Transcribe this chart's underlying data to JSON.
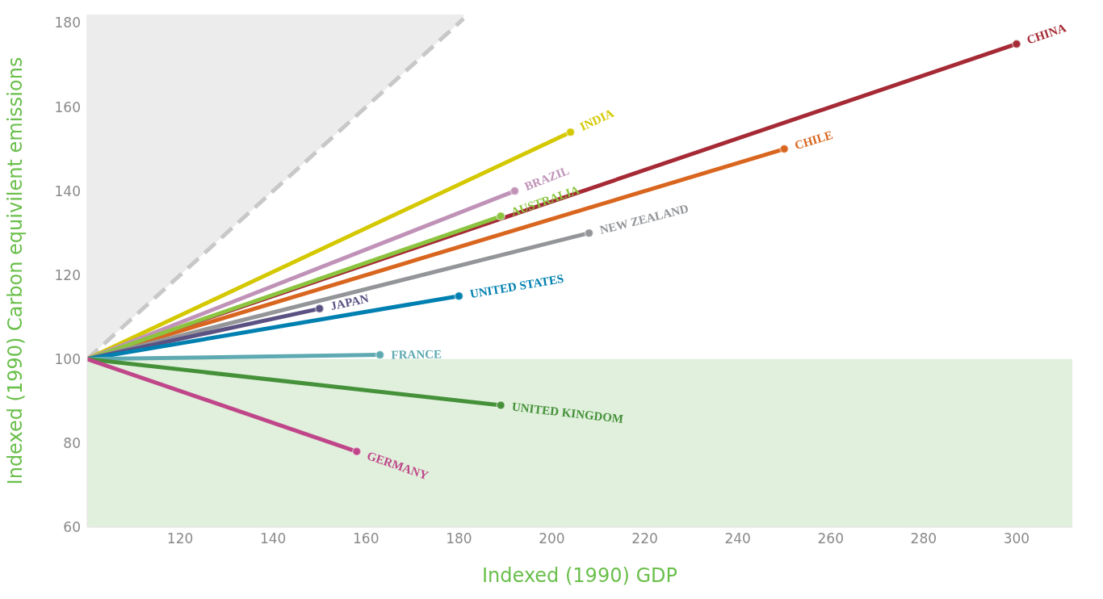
{
  "chart_data": {
    "type": "line",
    "xlabel": "Indexed (1990) GDP",
    "ylabel": "Indexed (1990) Carbon equivilent emissions",
    "xlim": [
      100,
      312
    ],
    "xticks": [
      120,
      140,
      160,
      180,
      200,
      220,
      240,
      260,
      280,
      300
    ],
    "ylim": [
      60,
      182
    ],
    "yticks": [
      60,
      80,
      100,
      120,
      140,
      160,
      180
    ],
    "legend": false,
    "marker": "circle",
    "line_style": "solid",
    "bands": [
      {
        "axis": "y",
        "from": 60,
        "to": 100,
        "color": "#e0f0dc"
      }
    ],
    "series": [
      {
        "type": "area",
        "color": "#c8c8c8",
        "line_style": "dashed",
        "marker": "none",
        "x": [
          100,
          181
        ],
        "values": [
          100,
          181
        ]
      },
      {
        "name": "CHINA",
        "color": "#a52a35",
        "x": [
          100,
          300
        ],
        "values": [
          100,
          175
        ]
      },
      {
        "name": "CHILE",
        "color": "#d9661f",
        "x": [
          100,
          250
        ],
        "values": [
          100,
          150
        ]
      },
      {
        "name": "INDIA",
        "color": "#d4c800",
        "x": [
          100,
          204
        ],
        "values": [
          100,
          154
        ]
      },
      {
        "name": "BRAZIL",
        "color": "#c092b8",
        "x": [
          100,
          192
        ],
        "values": [
          100,
          140
        ]
      },
      {
        "name": "AUSTRALIA",
        "color": "#8cc43f",
        "x": [
          100,
          189
        ],
        "values": [
          100,
          134
        ]
      },
      {
        "name": "NEW ZEALAND",
        "color": "#939598",
        "x": [
          100,
          208
        ],
        "values": [
          100,
          130
        ]
      },
      {
        "name": "JAPAN",
        "color": "#5b5283",
        "x": [
          100,
          150
        ],
        "values": [
          100,
          112
        ]
      },
      {
        "name": "UNITED STATES",
        "color": "#0080b0",
        "x": [
          100,
          180
        ],
        "values": [
          100,
          115
        ]
      },
      {
        "name": "FRANCE",
        "color": "#5faab2",
        "x": [
          100,
          163
        ],
        "values": [
          100,
          101
        ]
      },
      {
        "name": "UNITED KINGDOM",
        "color": "#45913a",
        "x": [
          100,
          189
        ],
        "values": [
          100,
          89
        ]
      },
      {
        "name": "GERMANY",
        "color": "#c0468a",
        "x": [
          100,
          158
        ],
        "values": [
          100,
          78
        ]
      }
    ]
  }
}
